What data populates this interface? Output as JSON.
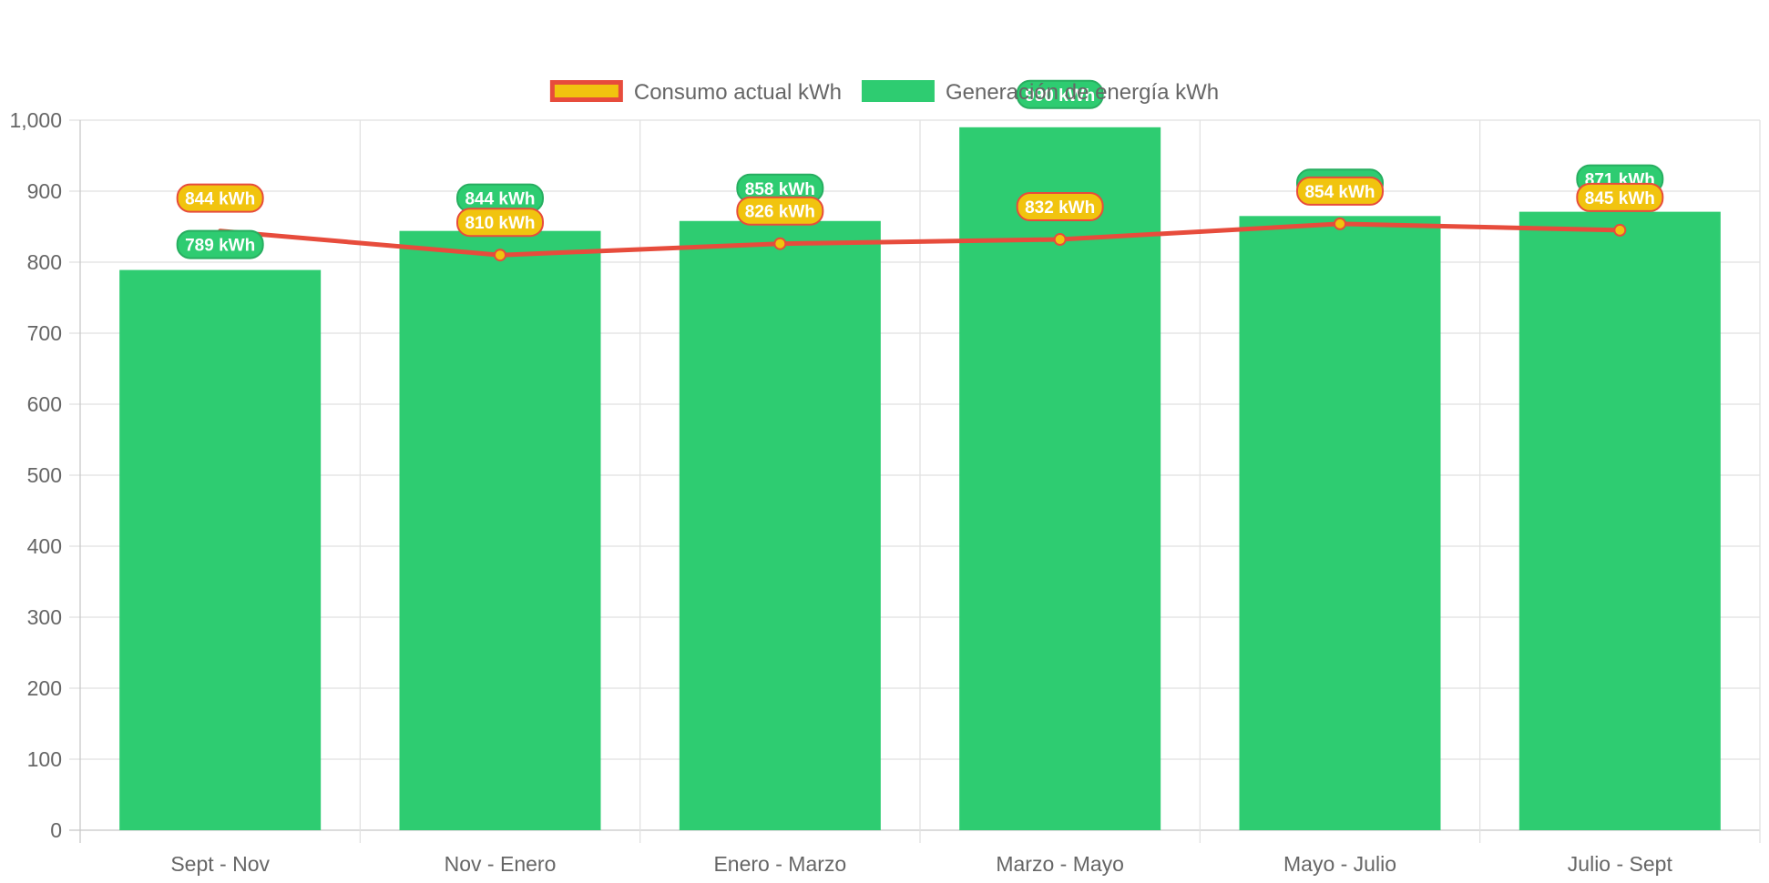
{
  "chart_data": {
    "type": "bar",
    "categories": [
      "Sept - Nov",
      "Nov - Enero",
      "Enero - Marzo",
      "Marzo - Mayo",
      "Mayo - Julio",
      "Julio - Sept"
    ],
    "series": [
      {
        "name": "Consumo actual kWh",
        "type": "line",
        "values": [
          844,
          810,
          826,
          832,
          854,
          845
        ],
        "data_labels": [
          "844 kWh",
          "810 kWh",
          "826 kWh",
          "832 kWh",
          "854 kWh",
          "845 kWh"
        ],
        "color": "#e74c3c",
        "fill_color": "#f1c40f"
      },
      {
        "name": "Generación de energía kWh",
        "type": "bar",
        "values": [
          789,
          844,
          858,
          990,
          865,
          871
        ],
        "data_labels": [
          "789 kWh",
          "844 kWh",
          "858 kWh",
          "990 kWh",
          "865 kWh",
          "871 kWh"
        ],
        "color": "#2ecc71"
      }
    ],
    "ylim": [
      0,
      1000
    ],
    "y_ticks": [
      "0",
      "100",
      "200",
      "300",
      "400",
      "500",
      "600",
      "700",
      "800",
      "900",
      "1,000"
    ],
    "grid": true,
    "legend": "top-center"
  }
}
